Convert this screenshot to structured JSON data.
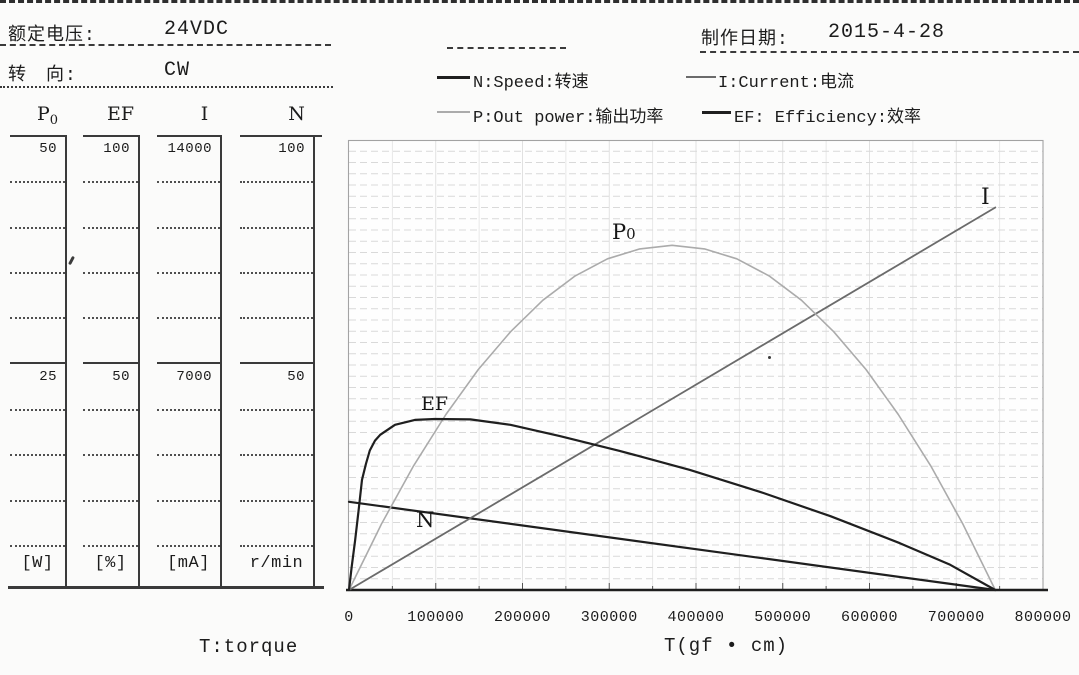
{
  "title_block": {
    "rated_voltage_label": "额定电压:",
    "rated_voltage_value": "24VDC",
    "direction_label": "转　向:",
    "direction_value": "CW",
    "date_label": "制作日期:",
    "date_value": "2015-4-28"
  },
  "legend": {
    "speed": "N:Speed:转速",
    "current": "I:Current:电流",
    "power": "P:Out power:输出功率",
    "efficiency": "EF: Efficiency:效率"
  },
  "scale_table": {
    "columns": [
      {
        "name_main": "P",
        "name_sub": "0",
        "top_value": "50",
        "mid_value": "25",
        "unit": "[W]"
      },
      {
        "name_main": "EF",
        "name_sub": "",
        "top_value": "100",
        "mid_value": "50",
        "unit": "[%]"
      },
      {
        "name_main": "I",
        "name_sub": "",
        "top_value": "14000",
        "mid_value": "7000",
        "unit": "[mA]"
      },
      {
        "name_main": "N",
        "name_sub": "",
        "top_value": "100",
        "mid_value": "50",
        "unit": "r/min"
      }
    ],
    "footnote": "T:torque"
  },
  "chart": {
    "x_axis_title": "T(gf • cm)",
    "x_tick_labels": [
      "0",
      "100000",
      "200000",
      "300000",
      "400000",
      "500000",
      "600000",
      "700000",
      "800000"
    ],
    "labels": {
      "p0_main": "P",
      "p0_sub": "0",
      "ef": "EF",
      "n": "N",
      "i": "I"
    }
  },
  "chart_data": {
    "type": "line",
    "title": "",
    "xlabel": "T(gf • cm)",
    "xlim": [
      0,
      800000
    ],
    "x_ticks": [
      0,
      100000,
      200000,
      300000,
      400000,
      500000,
      600000,
      700000,
      800000
    ],
    "grid": "fine horizontal lines with light vertical lines every 50000",
    "stall_torque_gf_cm": 745000,
    "series": [
      {
        "name": "N",
        "legend": "N:Speed:转速",
        "unit": "r/min",
        "axis_max": 100,
        "axis_mid": 50,
        "color": "#1f1f1f",
        "width": 2.2,
        "x": [
          0,
          745000
        ],
        "values": [
          19.6,
          0
        ]
      },
      {
        "name": "I",
        "legend": "I:Current:电流",
        "unit": "mA",
        "axis_max": 14000,
        "axis_mid": 7000,
        "color": "#6b6b6b",
        "width": 1.8,
        "x": [
          0,
          745000
        ],
        "values": [
          0,
          11900
        ]
      },
      {
        "name": "P0",
        "legend": "P:Out power:输出功率",
        "unit": "W",
        "axis_max": 50,
        "axis_mid": 25,
        "color": "#ababab",
        "width": 1.6,
        "x": [
          0,
          37250,
          74500,
          111750,
          149000,
          186250,
          223500,
          260750,
          298000,
          335250,
          372500,
          409750,
          447000,
          484250,
          521500,
          558750,
          596000,
          633250,
          670500,
          707750,
          745000
        ],
        "values": [
          0,
          7.3,
          13.8,
          19.5,
          24.5,
          28.7,
          32.2,
          34.9,
          36.8,
          37.9,
          38.3,
          37.9,
          36.8,
          34.9,
          32.2,
          28.7,
          24.5,
          19.5,
          13.8,
          7.3,
          0
        ]
      },
      {
        "name": "EF",
        "legend": "EF: Efficiency:效率",
        "unit": "%",
        "axis_max": 100,
        "axis_mid": 50,
        "color": "#1f1f1f",
        "width": 2.2,
        "x": [
          0,
          3000,
          7000,
          11000,
          15000,
          19500,
          24000,
          30000,
          36000,
          53000,
          76000,
          99000,
          140000,
          186000,
          243000,
          312000,
          393000,
          474000,
          555000,
          635000,
          693000,
          745000
        ],
        "values": [
          0,
          5,
          11,
          17.5,
          24.5,
          28,
          31,
          33.2,
          34.5,
          36.7,
          37.8,
          38,
          37.9,
          36.7,
          34.2,
          30.9,
          26.7,
          21.8,
          16.4,
          10.4,
          5.6,
          0
        ]
      }
    ]
  },
  "colors": {
    "ink": "#1c1c1c",
    "rule": "#2e2e2e",
    "grid_h": "#d9d9d9",
    "grid_v": "#e6e6e6",
    "plot_border": "#a3a3a3",
    "axis": "#1e1e1e",
    "paper": "#fbfbfa"
  }
}
